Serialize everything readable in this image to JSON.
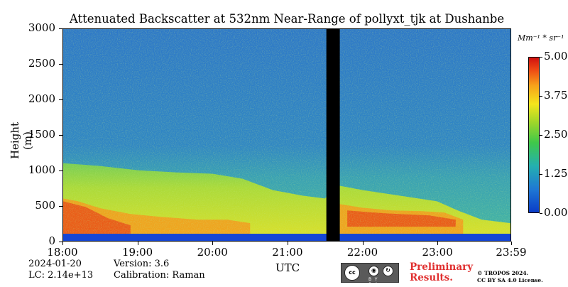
{
  "chart_data": {
    "type": "heatmap",
    "title": "Attenuated Backscatter at 532nm Near-Range of pollyxt_tjk at Dushanbe",
    "xlabel": "UTC",
    "ylabel": "Height (m)",
    "x_ticks": [
      "18:00",
      "19:00",
      "20:00",
      "21:00",
      "22:00",
      "23:00",
      "23:59"
    ],
    "x_range_hours": [
      18.0,
      23.983
    ],
    "y_ticks": [
      "0",
      "500",
      "1000",
      "1500",
      "2000",
      "2500",
      "3000"
    ],
    "ylim": [
      0,
      3000
    ],
    "colorbar": {
      "unit": "Mm⁻¹ * sr⁻¹",
      "range": [
        0.0,
        5.0
      ],
      "ticks": [
        "0.00",
        "1.25",
        "2.50",
        "3.75",
        "5.00"
      ]
    },
    "no_data_gap_hours": [
      21.52,
      21.7
    ],
    "layers": [
      {
        "feature": "near-surface layer",
        "height_m": [
          0,
          100
        ],
        "level": 0.3
      },
      {
        "feature": "aerosol layer",
        "height_m": [
          100,
          1100
        ],
        "level": 2.6
      },
      {
        "feature": "high backscatter near ground",
        "height_m": [
          100,
          600
        ],
        "level": 4.5
      }
    ]
  },
  "info": {
    "date": "2024-01-20",
    "lc": "LC: 2.14e+13",
    "version": "Version: 3.6",
    "calibration": "Calibration: Raman"
  },
  "badge": {
    "cc": "cc",
    "by_sa": "BY SA",
    "preliminary": "Preliminary",
    "results": "Results.",
    "copyright": "© TROPOS 2024.",
    "license": "CC BY SA 4.0 License."
  }
}
